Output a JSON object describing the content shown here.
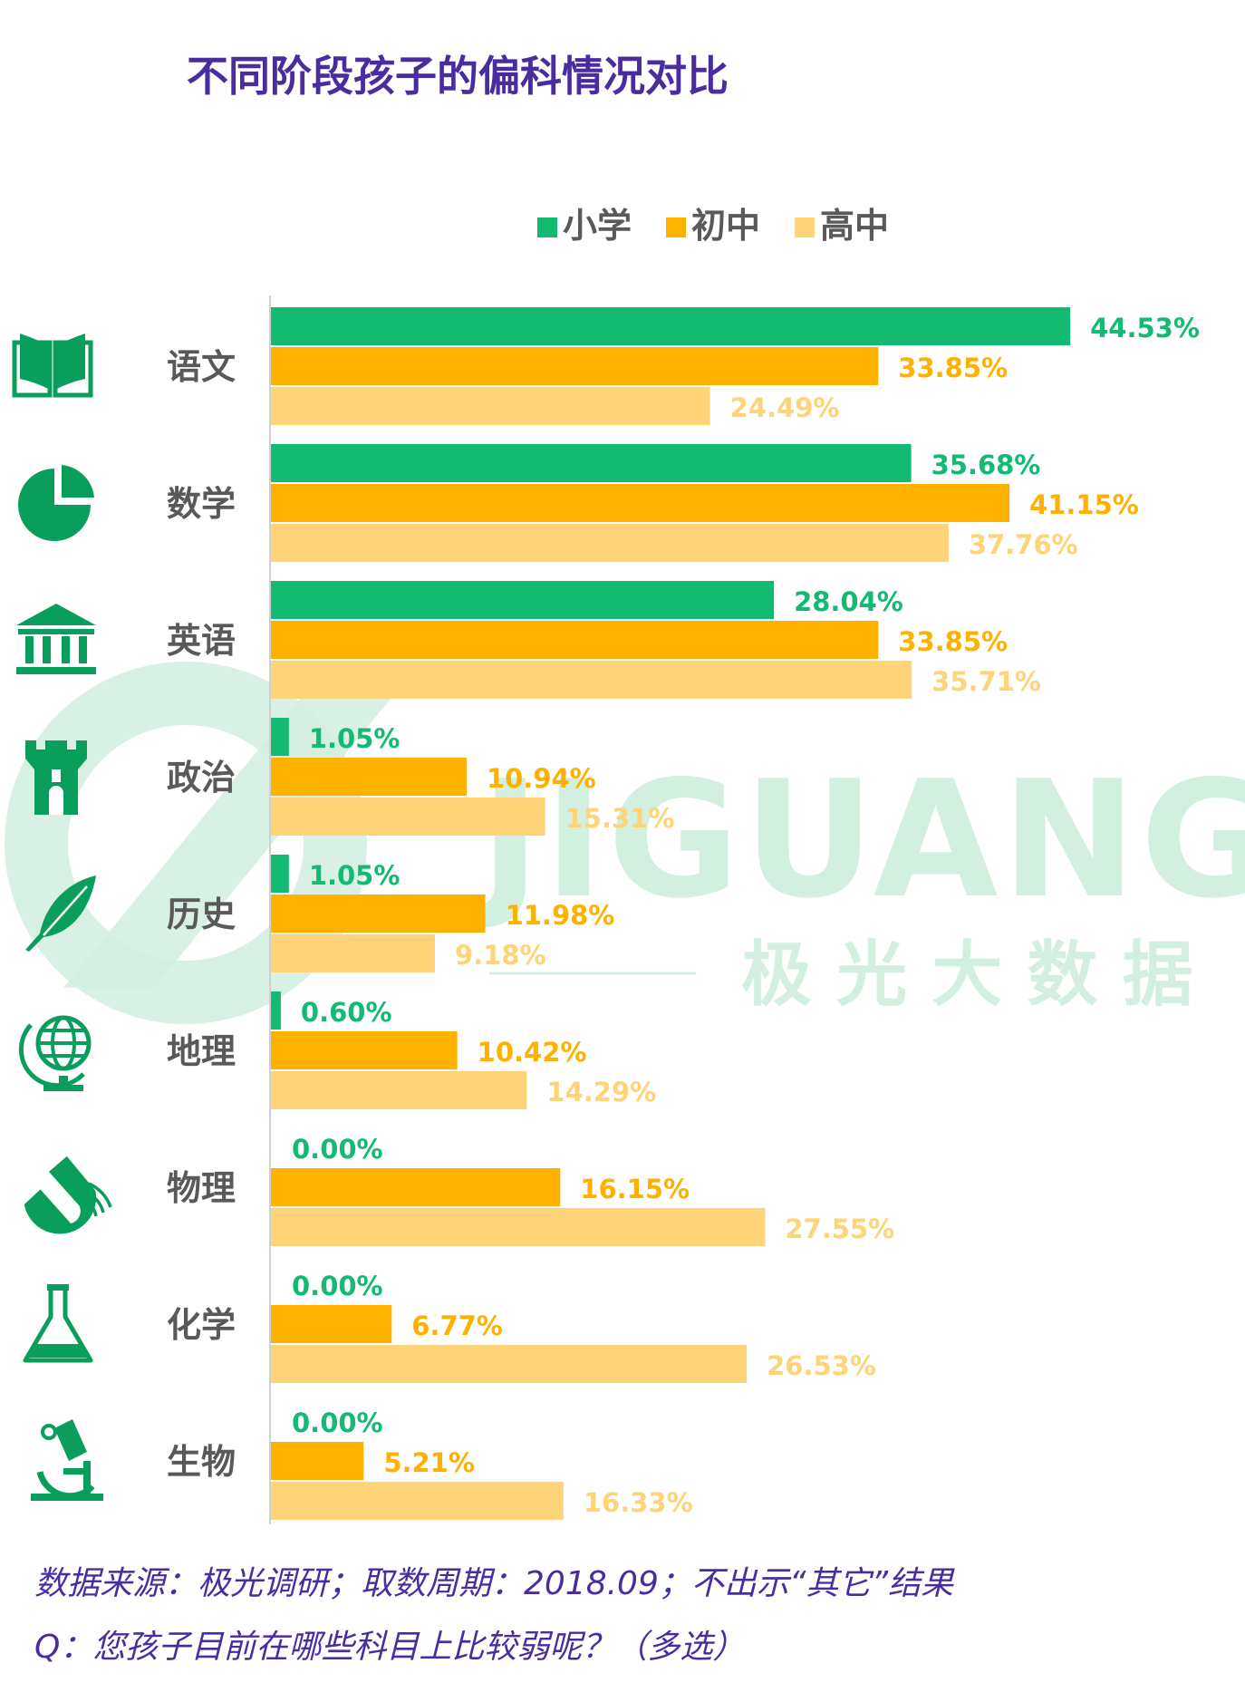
{
  "watermark": {
    "wordmark": "JIGUANG",
    "subtitle": "极 光 大 数 据"
  },
  "footer": {
    "source": "数据来源：极光调研；取数周期：2018.09；不出示“其它”结果",
    "question": "Q：您孩子目前在哪些科目上比较弱呢？（多选）"
  },
  "colors": {
    "title": "#4b2ca0",
    "primary": "#12ba72",
    "middle": "#ffb100",
    "high": "#ffd479",
    "label": "#595959",
    "axis": "#d0d0d0",
    "icon": "#0a9e5c",
    "watermark": "#d2efe0",
    "footer": "#4b2ca0"
  },
  "chart_data": {
    "type": "bar",
    "orientation": "horizontal",
    "title": "不同阶段孩子的偏科情况对比",
    "legend_position": "top",
    "grid": false,
    "xlim": [
      0,
      47.5
    ],
    "categories": [
      "语文",
      "数学",
      "英语",
      "政治",
      "历史",
      "地理",
      "物理",
      "化学",
      "生物"
    ],
    "category_icons": [
      "open-book-icon",
      "pie-chart-icon",
      "classical-building-icon",
      "castle-tower-icon",
      "quill-feather-icon",
      "globe-icon",
      "magnet-icon",
      "flask-icon",
      "microscope-icon"
    ],
    "series": [
      {
        "name": "小学",
        "color": "#12ba72",
        "values": [
          44.53,
          35.68,
          28.04,
          1.05,
          1.05,
          0.6,
          0.0,
          0.0,
          0.0
        ],
        "labels": [
          "44.53%",
          "35.68%",
          "28.04%",
          "1.05%",
          "1.05%",
          "0.60%",
          "0.00%",
          "0.00%",
          "0.00%"
        ]
      },
      {
        "name": "初中",
        "color": "#ffb100",
        "values": [
          33.85,
          41.15,
          33.85,
          10.94,
          11.98,
          10.42,
          16.15,
          6.77,
          5.21
        ],
        "labels": [
          "33.85%",
          "41.15%",
          "33.85%",
          "10.94%",
          "11.98%",
          "10.42%",
          "16.15%",
          "6.77%",
          "5.21%"
        ]
      },
      {
        "name": "高中",
        "color": "#ffd479",
        "values": [
          24.49,
          37.76,
          35.71,
          15.31,
          9.18,
          14.29,
          27.55,
          26.53,
          16.33
        ],
        "labels": [
          "24.49%",
          "37.76%",
          "35.71%",
          "15.31%",
          "9.18%",
          "14.29%",
          "27.55%",
          "26.53%",
          "16.33%"
        ]
      }
    ]
  }
}
